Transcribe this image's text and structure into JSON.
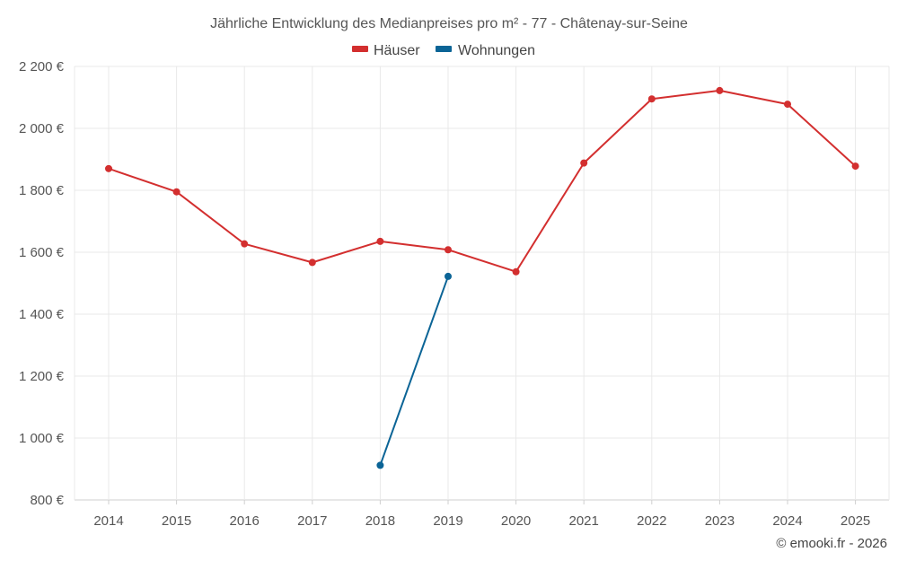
{
  "chart_data": {
    "type": "line",
    "title": "Jährliche Entwicklung des Medianpreises pro m² - 77 - Châtenay-sur-Seine",
    "x": [
      2014,
      2015,
      2016,
      2017,
      2018,
      2019,
      2020,
      2021,
      2022,
      2023,
      2024,
      2025
    ],
    "x_tick_labels": [
      "2014",
      "2015",
      "2016",
      "2017",
      "2018",
      "2019",
      "2020",
      "2021",
      "2022",
      "2023",
      "2024",
      "2025"
    ],
    "ylim": [
      800,
      2200
    ],
    "y_ticks": [
      800,
      1000,
      1200,
      1400,
      1600,
      1800,
      2000,
      2200
    ],
    "y_tick_labels": [
      "800 €",
      "1 000 €",
      "1 200 €",
      "1 400 €",
      "1 600 €",
      "1 800 €",
      "2 000 €",
      "2 200 €"
    ],
    "xlabel": "",
    "ylabel": "",
    "legend_position": "top-center",
    "grid": true,
    "series": [
      {
        "name": "Häuser",
        "color": "#d32f2f",
        "values": [
          1870,
          1795,
          1627,
          1567,
          1635,
          1608,
          1537,
          1888,
          2095,
          2122,
          2078,
          1878
        ]
      },
      {
        "name": "Wohnungen",
        "color": "#0b6496",
        "values": [
          null,
          null,
          null,
          null,
          912,
          1522,
          null,
          null,
          null,
          null,
          null,
          null
        ]
      }
    ]
  },
  "credit": "© emooki.fr - 2026"
}
